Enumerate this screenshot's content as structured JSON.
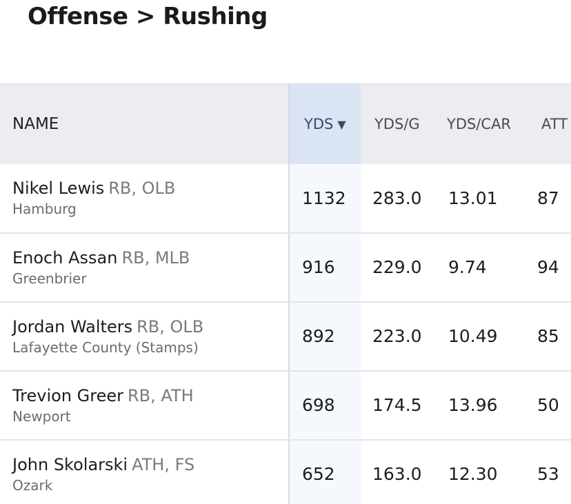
{
  "breadcrumb": {
    "section": "Offense",
    "separator": ">",
    "subsection": "Rushing"
  },
  "table": {
    "columns": {
      "name": "NAME",
      "yds": "YDS",
      "ydsg": "YDS/G",
      "ydscar": "YDS/CAR",
      "att": "ATT"
    },
    "sort_icon": "▼",
    "rows": [
      {
        "name": "Nikel Lewis",
        "pos": "RB, OLB",
        "school": "Hamburg",
        "yds": "1132",
        "ydsg": "283.0",
        "ydscar": "13.01",
        "att": "87"
      },
      {
        "name": "Enoch Assan",
        "pos": "RB, MLB",
        "school": "Greenbrier",
        "yds": "916",
        "ydsg": "229.0",
        "ydscar": "9.74",
        "att": "94"
      },
      {
        "name": "Jordan Walters",
        "pos": "RB, OLB",
        "school": "Lafayette County (Stamps)",
        "yds": "892",
        "ydsg": "223.0",
        "ydscar": "10.49",
        "att": "85"
      },
      {
        "name": "Trevion Greer",
        "pos": "RB, ATH",
        "school": "Newport",
        "yds": "698",
        "ydsg": "174.5",
        "ydscar": "13.96",
        "att": "50"
      },
      {
        "name": "John Skolarski",
        "pos": "ATH, FS",
        "school": "Ozark",
        "yds": "652",
        "ydsg": "163.0",
        "ydscar": "12.30",
        "att": "53"
      }
    ]
  }
}
